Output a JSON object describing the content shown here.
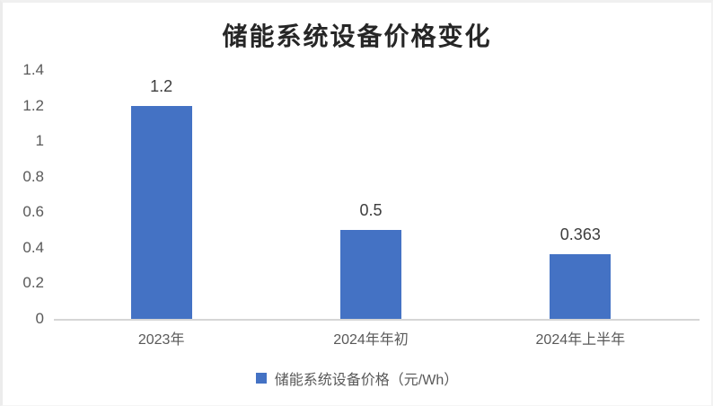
{
  "chart_data": {
    "type": "bar",
    "title": "储能系统设备价格变化",
    "categories": [
      "2023年",
      "2024年年初",
      "2024年上半年"
    ],
    "values": [
      1.2,
      0.5,
      0.363
    ],
    "data_labels": [
      "1.2",
      "0.5",
      "0.363"
    ],
    "series_name": "储能系统设备价格（元/Wh）",
    "xlabel": "",
    "ylabel": "",
    "ylim": [
      0,
      1.4
    ],
    "ytick_step": 0.2,
    "yticks": [
      "0",
      "0.2",
      "0.4",
      "0.6",
      "0.8",
      "1",
      "1.2",
      "1.4"
    ],
    "grid": false,
    "legend_position": "bottom",
    "bar_color": "#4472C4",
    "axis_line_color": "#D6D6D6",
    "tick_label_color": "#595959",
    "value_label_color": "#3D3D3D",
    "title_color": "#262626"
  }
}
